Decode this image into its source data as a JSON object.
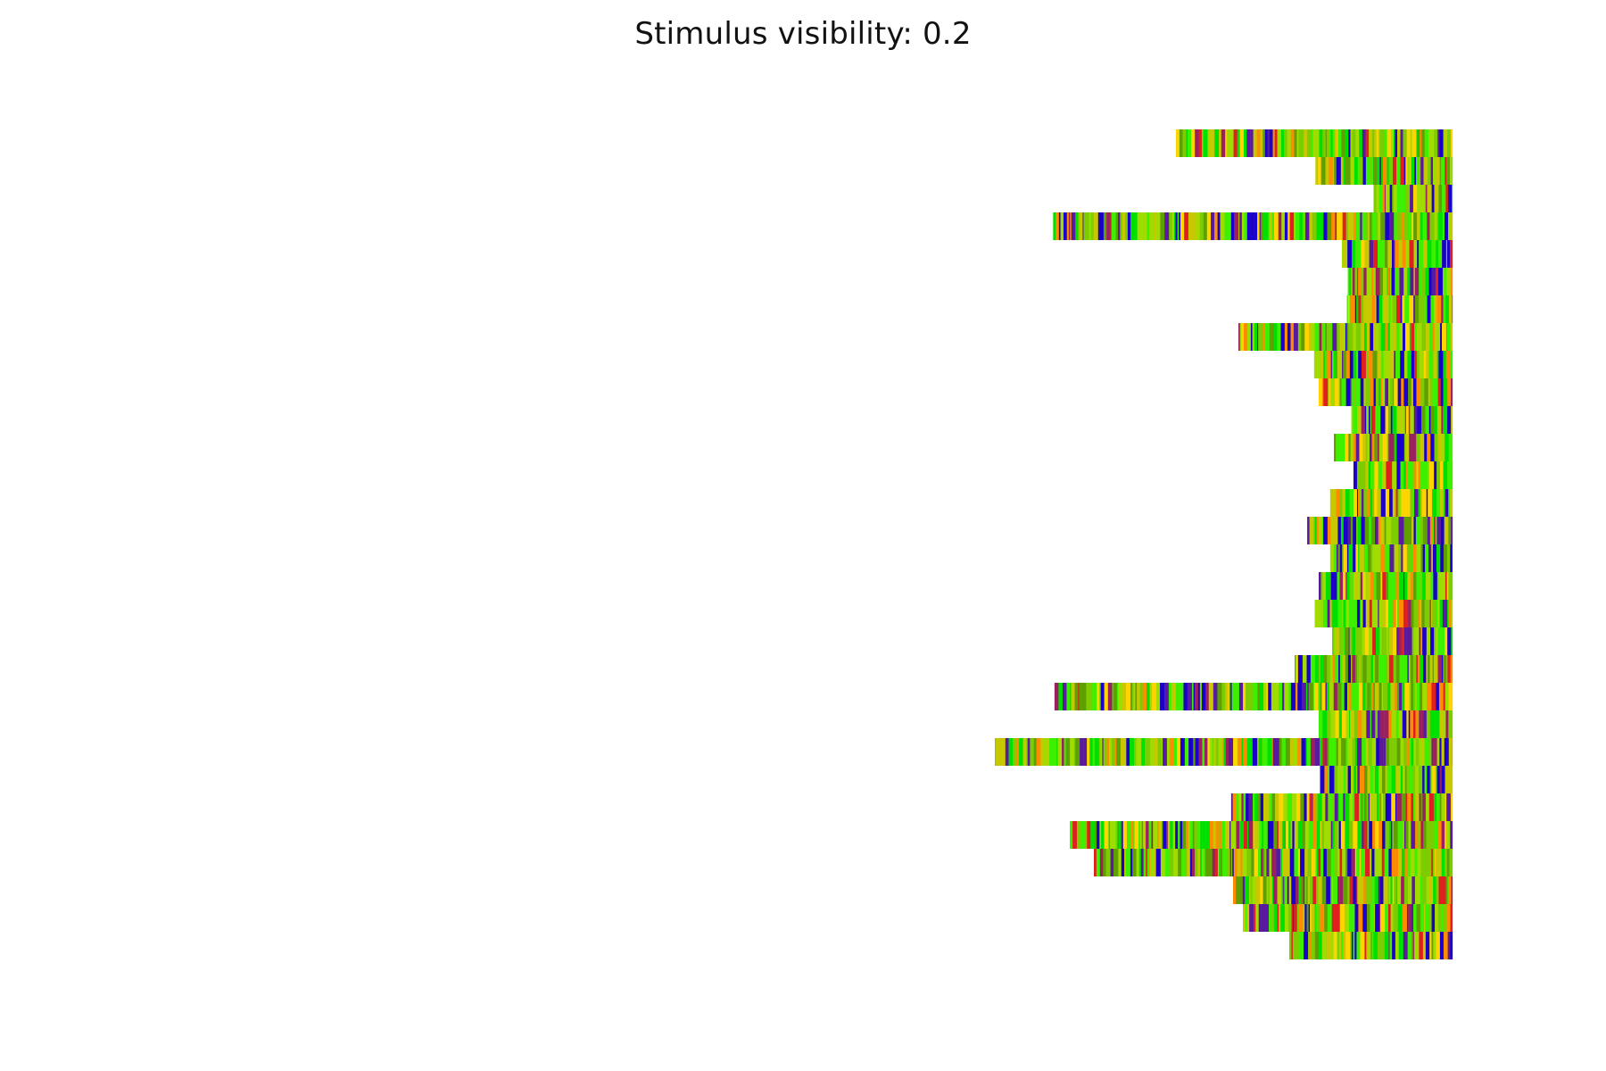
{
  "chart_data": {
    "type": "heatmap",
    "title": "Stimulus visibility: 0.2",
    "xlabel": "",
    "ylabel": "",
    "axes": "off",
    "grid": false,
    "legend": "none",
    "alignment": "right-aligned (sequences end at a common final step)",
    "colormap": "brg-like (blue, purple, red, orange, yellow, lime, green)",
    "colors": [
      "#1a00c8",
      "#5a1aa0",
      "#9a2060",
      "#e02020",
      "#ff8c00",
      "#ffd400",
      "#c8c800",
      "#a0dc00",
      "#7ccc00",
      "#3cf000",
      "#00e000",
      "#5fa000"
    ],
    "n_rows": 30,
    "rows": [
      {
        "row": 1,
        "start_step": -1033
      },
      {
        "row": 2,
        "start_step": -512
      },
      {
        "row": 3,
        "start_step": -295
      },
      {
        "row": 4,
        "start_step": -1492
      },
      {
        "row": 5,
        "start_step": -413
      },
      {
        "row": 6,
        "start_step": -391
      },
      {
        "row": 7,
        "start_step": -395
      },
      {
        "row": 8,
        "start_step": -800
      },
      {
        "row": 9,
        "start_step": -517
      },
      {
        "row": 10,
        "start_step": -500
      },
      {
        "row": 11,
        "start_step": -378
      },
      {
        "row": 12,
        "start_step": -443
      },
      {
        "row": 13,
        "start_step": -370
      },
      {
        "row": 14,
        "start_step": -457
      },
      {
        "row": 15,
        "start_step": -543
      },
      {
        "row": 16,
        "start_step": -457
      },
      {
        "row": 17,
        "start_step": -500
      },
      {
        "row": 18,
        "start_step": -515
      },
      {
        "row": 19,
        "start_step": -450
      },
      {
        "row": 20,
        "start_step": -590
      },
      {
        "row": 21,
        "start_step": -1487
      },
      {
        "row": 22,
        "start_step": -500
      },
      {
        "row": 23,
        "start_step": -1710
      },
      {
        "row": 24,
        "start_step": -495
      },
      {
        "row": 25,
        "start_step": -827
      },
      {
        "row": 26,
        "start_step": -1430
      },
      {
        "row": 27,
        "start_step": -1340
      },
      {
        "row": 28,
        "start_step": -820
      },
      {
        "row": 29,
        "start_step": -783
      },
      {
        "row": 30,
        "start_step": -610
      }
    ]
  }
}
